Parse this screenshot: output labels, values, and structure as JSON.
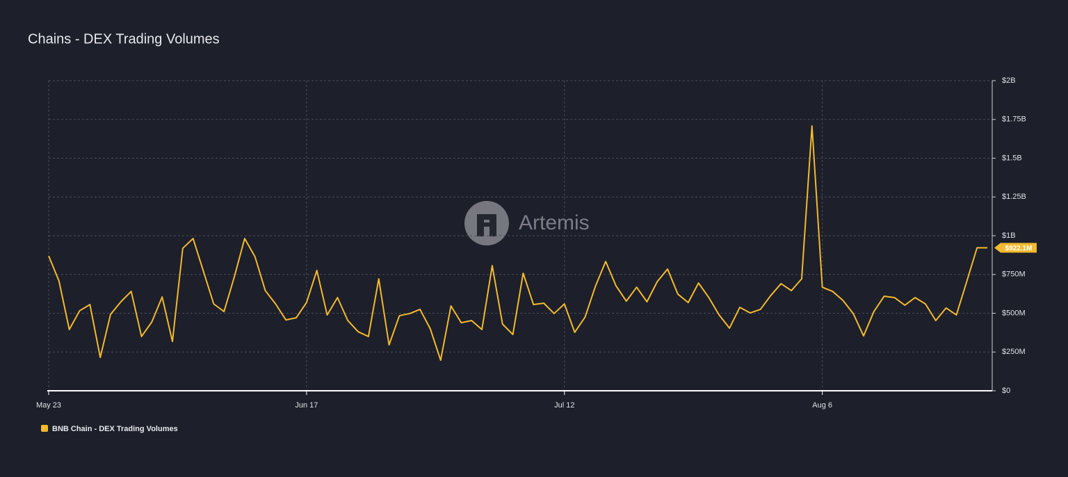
{
  "chart_data": {
    "type": "line",
    "title": "Chains - DEX Trading Volumes",
    "watermark": "Artemis",
    "categories": [
      "May 23",
      null,
      null,
      null,
      null,
      null,
      null,
      null,
      null,
      null,
      null,
      null,
      null,
      null,
      null,
      null,
      null,
      null,
      null,
      null,
      null,
      null,
      null,
      null,
      null,
      "Jun 17",
      null,
      null,
      null,
      null,
      null,
      null,
      null,
      null,
      null,
      null,
      null,
      null,
      null,
      null,
      null,
      null,
      null,
      null,
      null,
      null,
      null,
      null,
      null,
      null,
      "Jul 12",
      null,
      null,
      null,
      null,
      null,
      null,
      null,
      null,
      null,
      null,
      null,
      null,
      null,
      null,
      null,
      null,
      null,
      null,
      null,
      null,
      null,
      null,
      null,
      null,
      "Aug 6",
      null,
      null,
      null,
      null,
      null,
      null,
      null,
      null,
      null,
      null,
      null,
      null,
      null,
      null,
      null,
      null
    ],
    "series": [
      {
        "name": "BNB Chain - DEX Trading Volumes",
        "color": "#f3ba2f",
        "values": [
          870000000,
          708000000,
          395000000,
          516000000,
          556000000,
          215000000,
          493000000,
          574000000,
          641000000,
          350000000,
          444000000,
          605000000,
          318000000,
          919000000,
          982000000,
          771000000,
          560000000,
          511000000,
          735000000,
          982000000,
          865000000,
          646000000,
          560000000,
          457000000,
          471000000,
          569000000,
          776000000,
          489000000,
          601000000,
          453000000,
          381000000,
          350000000,
          722000000,
          296000000,
          484000000,
          498000000,
          525000000,
          399000000,
          197000000,
          547000000,
          439000000,
          453000000,
          395000000,
          807000000,
          430000000,
          363000000,
          758000000,
          556000000,
          565000000,
          498000000,
          560000000,
          377000000,
          475000000,
          673000000,
          834000000,
          677000000,
          578000000,
          668000000,
          574000000,
          704000000,
          785000000,
          623000000,
          569000000,
          695000000,
          601000000,
          489000000,
          404000000,
          538000000,
          502000000,
          525000000,
          614000000,
          691000000,
          646000000,
          722000000,
          1708000000,
          668000000,
          641000000,
          583000000,
          498000000,
          354000000,
          511000000,
          610000000,
          601000000,
          552000000,
          601000000,
          560000000,
          453000000,
          534000000,
          489000000,
          704000000,
          922000000,
          922100000
        ],
        "last_value_label": "$922.1M"
      }
    ],
    "ylim": [
      0,
      2000000000
    ],
    "yticks": [
      {
        "value": 0,
        "label": "$0"
      },
      {
        "value": 250000000,
        "label": "$250M"
      },
      {
        "value": 500000000,
        "label": "$500M"
      },
      {
        "value": 750000000,
        "label": "$750M"
      },
      {
        "value": 1000000000,
        "label": "$1B"
      },
      {
        "value": 1250000000,
        "label": "$1.25B"
      },
      {
        "value": 1500000000,
        "label": "$1.5B"
      },
      {
        "value": 1750000000,
        "label": "$1.75B"
      },
      {
        "value": 2000000000,
        "label": "$2B"
      }
    ],
    "grid": true,
    "legend": "bottom-left"
  }
}
